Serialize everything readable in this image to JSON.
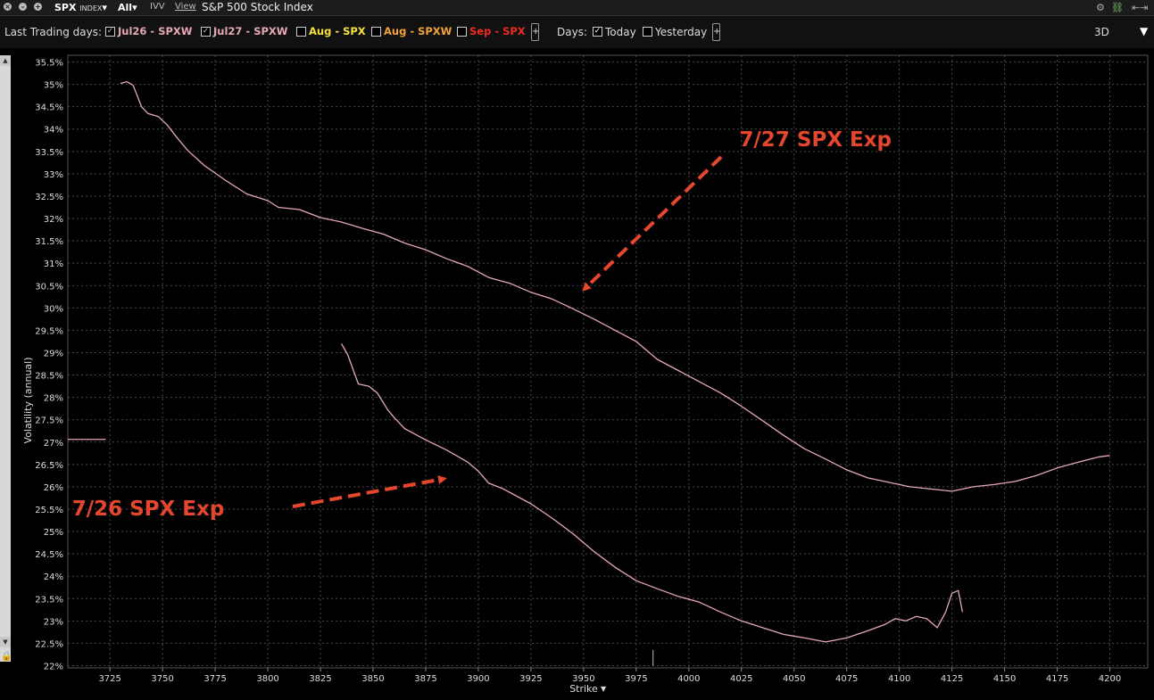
{
  "window": {
    "symbol": "SPX",
    "symbol_type": "INDEX",
    "filter": "All",
    "iv_label": "IVV",
    "view_label": "View",
    "title": "S&P 500 Stock Index"
  },
  "toolbar": {
    "last_trading_label": "Last Trading days:",
    "expiries": [
      {
        "label": "Jul26 - SPXW",
        "checked": true,
        "color": "#e6a9b3"
      },
      {
        "label": "Jul27 - SPXW",
        "checked": true,
        "color": "#e6a9b3"
      },
      {
        "label": "Aug - SPX",
        "checked": false,
        "color": "#f5e042"
      },
      {
        "label": "Aug - SPXW",
        "checked": false,
        "color": "#f2a23a"
      },
      {
        "label": "Sep - SPX",
        "checked": false,
        "color": "#ee2a1c"
      }
    ],
    "days_label": "Days:",
    "today_label": "Today",
    "today_checked": true,
    "yesterday_label": "Yesterday",
    "yesterday_checked": false,
    "view_mode": "3D"
  },
  "chart_data": {
    "type": "line",
    "xlabel": "Strike",
    "ylabel": "Volatility (annual)",
    "xlim": [
      3705,
      4218
    ],
    "ylim": [
      21.95,
      35.65
    ],
    "x_ticks": [
      3725,
      3750,
      3775,
      3800,
      3825,
      3850,
      3875,
      3900,
      3925,
      3950,
      3975,
      4000,
      4025,
      4050,
      4075,
      4100,
      4125,
      4150,
      4175,
      4200
    ],
    "y_ticks": [
      22,
      22.5,
      23,
      23.5,
      24,
      24.5,
      25,
      25.5,
      26,
      26.5,
      27,
      27.5,
      28,
      28.5,
      29,
      29.5,
      30,
      30.5,
      31,
      31.5,
      32,
      32.5,
      33,
      33.5,
      34,
      34.5,
      35,
      35.5
    ],
    "y_tick_suffix": "%",
    "grid": true,
    "line_color": "#e6a9b3",
    "series": [
      {
        "name": "Jul27 - SPXW",
        "x": [
          3730,
          3733,
          3736,
          3740,
          3743,
          3748,
          3752,
          3757,
          3762,
          3770,
          3780,
          3790,
          3800,
          3805,
          3815,
          3825,
          3835,
          3845,
          3855,
          3865,
          3875,
          3885,
          3895,
          3905,
          3915,
          3925,
          3935,
          3945,
          3955,
          3965,
          3975,
          3985,
          3995,
          4005,
          4015,
          4025,
          4035,
          4045,
          4055,
          4065,
          4075,
          4085,
          4095,
          4105,
          4115,
          4125,
          4135,
          4145,
          4155,
          4165,
          4175,
          4185,
          4195,
          4200
        ],
        "y": [
          35.02,
          35.06,
          34.98,
          34.5,
          34.35,
          34.28,
          34.1,
          33.8,
          33.52,
          33.18,
          32.85,
          32.55,
          32.4,
          32.25,
          32.2,
          32.02,
          31.92,
          31.78,
          31.65,
          31.45,
          31.3,
          31.1,
          30.93,
          30.68,
          30.55,
          30.35,
          30.2,
          29.98,
          29.75,
          29.5,
          29.25,
          28.85,
          28.6,
          28.35,
          28.1,
          27.8,
          27.48,
          27.15,
          26.85,
          26.62,
          26.38,
          26.2,
          26.1,
          26.0,
          25.95,
          25.9,
          26.0,
          26.05,
          26.12,
          26.25,
          26.42,
          26.55,
          26.67,
          26.7
        ]
      },
      {
        "name": "Jul26 - SPXW",
        "x": [
          3835,
          3838,
          3843,
          3848,
          3852,
          3857,
          3860,
          3865,
          3875,
          3885,
          3895,
          3900,
          3905,
          3912,
          3925,
          3935,
          3945,
          3955,
          3965,
          3975,
          3985,
          3995,
          4005,
          4015,
          4025,
          4035,
          4045,
          4055,
          4065,
          4075,
          4085,
          4093,
          4098,
          4103,
          4108,
          4113,
          4118,
          4122,
          4125,
          4128,
          4130
        ],
        "y": [
          29.2,
          28.95,
          28.3,
          28.25,
          28.1,
          27.72,
          27.55,
          27.3,
          27.05,
          26.82,
          26.55,
          26.35,
          26.08,
          25.95,
          25.62,
          25.3,
          24.95,
          24.55,
          24.2,
          23.9,
          23.72,
          23.55,
          23.42,
          23.2,
          23.0,
          22.85,
          22.7,
          22.62,
          22.53,
          22.62,
          22.78,
          22.92,
          23.05,
          23.0,
          23.1,
          23.05,
          22.85,
          23.2,
          23.62,
          23.68,
          23.2
        ]
      }
    ],
    "annotations": [
      {
        "text": "7/27 SPX Exp",
        "x": 4024,
        "y": 33.62
      },
      {
        "text": "7/26 SPX Exp",
        "x": 3707,
        "y": 25.36
      }
    ],
    "annotation_color": "#e5462e",
    "left_marker": {
      "x": [
        3705,
        3723
      ],
      "y": 27.06
    },
    "vertical_marker": {
      "x": 3983,
      "y": [
        22.0,
        22.35
      ]
    }
  }
}
